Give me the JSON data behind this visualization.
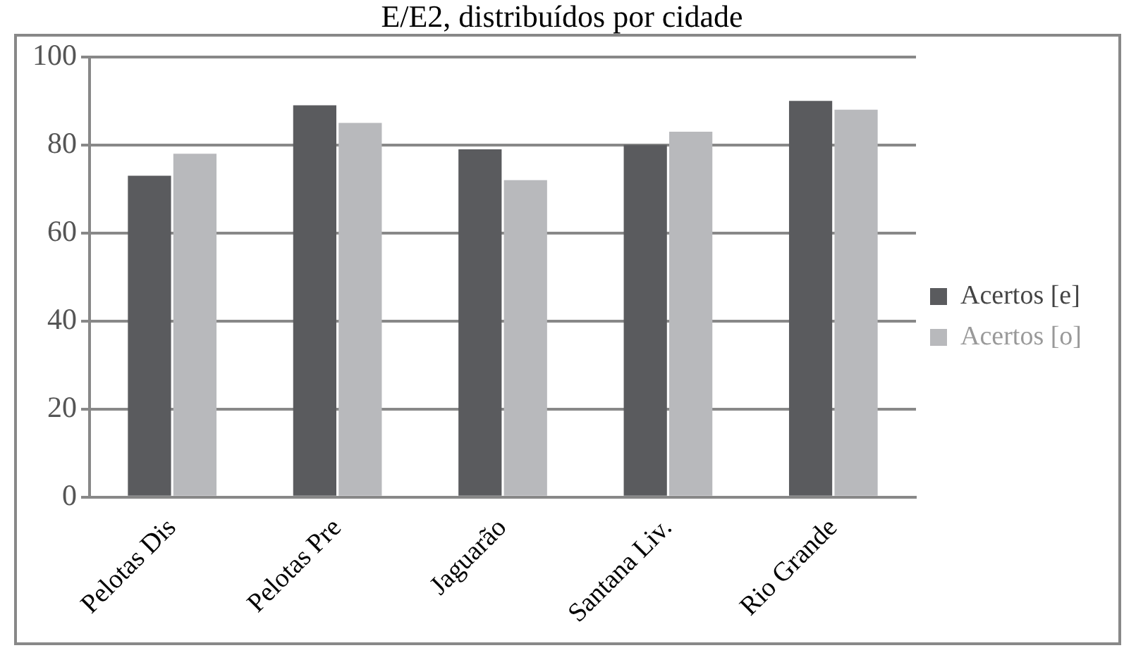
{
  "chart_data": {
    "type": "bar",
    "title": "E/E2, distribuídos por cidade",
    "categories": [
      "Pelotas Dis",
      "Pelotas Pre",
      "Jaguarão",
      "Santana Liv.",
      "Rio Grande"
    ],
    "series": [
      {
        "name": "Acertos [e]",
        "color": "#5a5b5e",
        "values": [
          73,
          89,
          79,
          80,
          90
        ]
      },
      {
        "name": "Acertos [o]",
        "color": "#b8b9bc",
        "values": [
          78,
          85,
          72,
          83,
          88
        ]
      }
    ],
    "ylim": [
      0,
      100
    ],
    "yticks": [
      0,
      20,
      40,
      60,
      80,
      100
    ],
    "grid": "y",
    "legend": "right"
  }
}
